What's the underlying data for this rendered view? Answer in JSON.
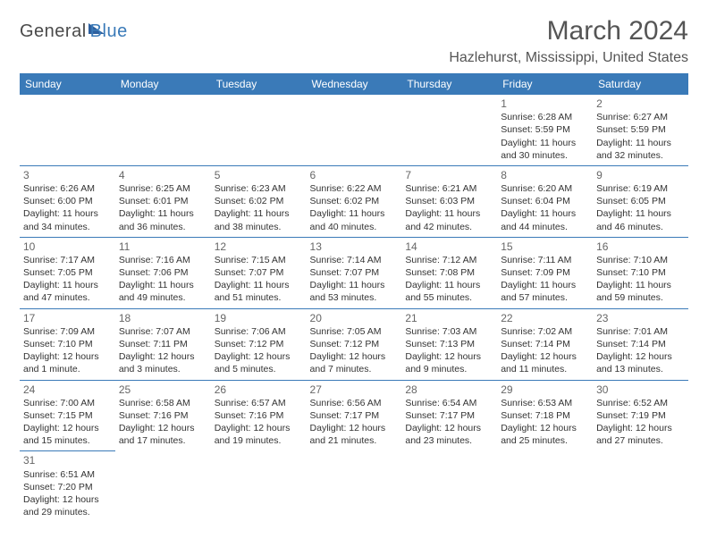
{
  "logo": {
    "part1": "General",
    "part2": "Blue"
  },
  "title": "March 2024",
  "location": "Hazlehurst, Mississippi, United States",
  "colors": {
    "header_bg": "#3a7ab8",
    "border": "#3a7ab8",
    "text": "#333333",
    "title_text": "#555555"
  },
  "day_headers": [
    "Sunday",
    "Monday",
    "Tuesday",
    "Wednesday",
    "Thursday",
    "Friday",
    "Saturday"
  ],
  "weeks": [
    [
      null,
      null,
      null,
      null,
      null,
      {
        "n": "1",
        "sr": "Sunrise: 6:28 AM",
        "ss": "Sunset: 5:59 PM",
        "d1": "Daylight: 11 hours",
        "d2": "and 30 minutes."
      },
      {
        "n": "2",
        "sr": "Sunrise: 6:27 AM",
        "ss": "Sunset: 5:59 PM",
        "d1": "Daylight: 11 hours",
        "d2": "and 32 minutes."
      }
    ],
    [
      {
        "n": "3",
        "sr": "Sunrise: 6:26 AM",
        "ss": "Sunset: 6:00 PM",
        "d1": "Daylight: 11 hours",
        "d2": "and 34 minutes."
      },
      {
        "n": "4",
        "sr": "Sunrise: 6:25 AM",
        "ss": "Sunset: 6:01 PM",
        "d1": "Daylight: 11 hours",
        "d2": "and 36 minutes."
      },
      {
        "n": "5",
        "sr": "Sunrise: 6:23 AM",
        "ss": "Sunset: 6:02 PM",
        "d1": "Daylight: 11 hours",
        "d2": "and 38 minutes."
      },
      {
        "n": "6",
        "sr": "Sunrise: 6:22 AM",
        "ss": "Sunset: 6:02 PM",
        "d1": "Daylight: 11 hours",
        "d2": "and 40 minutes."
      },
      {
        "n": "7",
        "sr": "Sunrise: 6:21 AM",
        "ss": "Sunset: 6:03 PM",
        "d1": "Daylight: 11 hours",
        "d2": "and 42 minutes."
      },
      {
        "n": "8",
        "sr": "Sunrise: 6:20 AM",
        "ss": "Sunset: 6:04 PM",
        "d1": "Daylight: 11 hours",
        "d2": "and 44 minutes."
      },
      {
        "n": "9",
        "sr": "Sunrise: 6:19 AM",
        "ss": "Sunset: 6:05 PM",
        "d1": "Daylight: 11 hours",
        "d2": "and 46 minutes."
      }
    ],
    [
      {
        "n": "10",
        "sr": "Sunrise: 7:17 AM",
        "ss": "Sunset: 7:05 PM",
        "d1": "Daylight: 11 hours",
        "d2": "and 47 minutes."
      },
      {
        "n": "11",
        "sr": "Sunrise: 7:16 AM",
        "ss": "Sunset: 7:06 PM",
        "d1": "Daylight: 11 hours",
        "d2": "and 49 minutes."
      },
      {
        "n": "12",
        "sr": "Sunrise: 7:15 AM",
        "ss": "Sunset: 7:07 PM",
        "d1": "Daylight: 11 hours",
        "d2": "and 51 minutes."
      },
      {
        "n": "13",
        "sr": "Sunrise: 7:14 AM",
        "ss": "Sunset: 7:07 PM",
        "d1": "Daylight: 11 hours",
        "d2": "and 53 minutes."
      },
      {
        "n": "14",
        "sr": "Sunrise: 7:12 AM",
        "ss": "Sunset: 7:08 PM",
        "d1": "Daylight: 11 hours",
        "d2": "and 55 minutes."
      },
      {
        "n": "15",
        "sr": "Sunrise: 7:11 AM",
        "ss": "Sunset: 7:09 PM",
        "d1": "Daylight: 11 hours",
        "d2": "and 57 minutes."
      },
      {
        "n": "16",
        "sr": "Sunrise: 7:10 AM",
        "ss": "Sunset: 7:10 PM",
        "d1": "Daylight: 11 hours",
        "d2": "and 59 minutes."
      }
    ],
    [
      {
        "n": "17",
        "sr": "Sunrise: 7:09 AM",
        "ss": "Sunset: 7:10 PM",
        "d1": "Daylight: 12 hours",
        "d2": "and 1 minute."
      },
      {
        "n": "18",
        "sr": "Sunrise: 7:07 AM",
        "ss": "Sunset: 7:11 PM",
        "d1": "Daylight: 12 hours",
        "d2": "and 3 minutes."
      },
      {
        "n": "19",
        "sr": "Sunrise: 7:06 AM",
        "ss": "Sunset: 7:12 PM",
        "d1": "Daylight: 12 hours",
        "d2": "and 5 minutes."
      },
      {
        "n": "20",
        "sr": "Sunrise: 7:05 AM",
        "ss": "Sunset: 7:12 PM",
        "d1": "Daylight: 12 hours",
        "d2": "and 7 minutes."
      },
      {
        "n": "21",
        "sr": "Sunrise: 7:03 AM",
        "ss": "Sunset: 7:13 PM",
        "d1": "Daylight: 12 hours",
        "d2": "and 9 minutes."
      },
      {
        "n": "22",
        "sr": "Sunrise: 7:02 AM",
        "ss": "Sunset: 7:14 PM",
        "d1": "Daylight: 12 hours",
        "d2": "and 11 minutes."
      },
      {
        "n": "23",
        "sr": "Sunrise: 7:01 AM",
        "ss": "Sunset: 7:14 PM",
        "d1": "Daylight: 12 hours",
        "d2": "and 13 minutes."
      }
    ],
    [
      {
        "n": "24",
        "sr": "Sunrise: 7:00 AM",
        "ss": "Sunset: 7:15 PM",
        "d1": "Daylight: 12 hours",
        "d2": "and 15 minutes."
      },
      {
        "n": "25",
        "sr": "Sunrise: 6:58 AM",
        "ss": "Sunset: 7:16 PM",
        "d1": "Daylight: 12 hours",
        "d2": "and 17 minutes."
      },
      {
        "n": "26",
        "sr": "Sunrise: 6:57 AM",
        "ss": "Sunset: 7:16 PM",
        "d1": "Daylight: 12 hours",
        "d2": "and 19 minutes."
      },
      {
        "n": "27",
        "sr": "Sunrise: 6:56 AM",
        "ss": "Sunset: 7:17 PM",
        "d1": "Daylight: 12 hours",
        "d2": "and 21 minutes."
      },
      {
        "n": "28",
        "sr": "Sunrise: 6:54 AM",
        "ss": "Sunset: 7:17 PM",
        "d1": "Daylight: 12 hours",
        "d2": "and 23 minutes."
      },
      {
        "n": "29",
        "sr": "Sunrise: 6:53 AM",
        "ss": "Sunset: 7:18 PM",
        "d1": "Daylight: 12 hours",
        "d2": "and 25 minutes."
      },
      {
        "n": "30",
        "sr": "Sunrise: 6:52 AM",
        "ss": "Sunset: 7:19 PM",
        "d1": "Daylight: 12 hours",
        "d2": "and 27 minutes."
      }
    ],
    [
      {
        "n": "31",
        "sr": "Sunrise: 6:51 AM",
        "ss": "Sunset: 7:20 PM",
        "d1": "Daylight: 12 hours",
        "d2": "and 29 minutes."
      },
      null,
      null,
      null,
      null,
      null,
      null
    ]
  ]
}
